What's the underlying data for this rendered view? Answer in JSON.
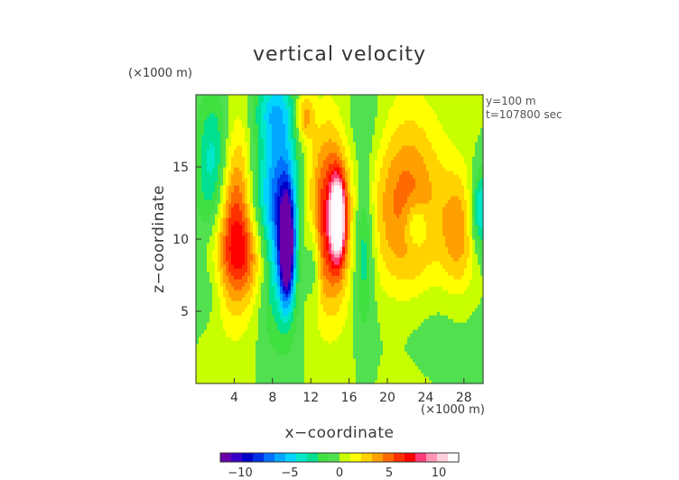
{
  "chart_data": {
    "type": "heatmap",
    "title": "vertical velocity",
    "xlabel": "x−coordinate",
    "ylabel": "z−coordinate",
    "x_multiplier_label": "(×1000 m)",
    "y_multiplier_label": "(×1000 m)",
    "annotations": [
      "y=100 m",
      "t=107800 sec"
    ],
    "xlim": [
      0,
      30
    ],
    "ylim": [
      0,
      20
    ],
    "x_ticks": [
      4,
      8,
      12,
      16,
      20,
      24,
      28
    ],
    "x_tick_labels": [
      "4",
      "8",
      "12",
      "16",
      "20",
      "24",
      "28"
    ],
    "y_ticks": [
      5,
      10,
      15
    ],
    "y_tick_labels": [
      "5",
      "10",
      "15"
    ],
    "colorbar": {
      "range": [
        -12,
        12
      ],
      "ticks": [
        -10,
        -5,
        0,
        5,
        10
      ],
      "tick_labels": [
        "−10",
        "−5",
        "0",
        "5",
        "10"
      ],
      "placement": "bottom"
    },
    "background_value": 0,
    "features": [
      {
        "x": 2.0,
        "z": 15.0,
        "sx": 1.3,
        "sz": 3.5,
        "value": -5
      },
      {
        "x": 4.0,
        "z": 11.5,
        "sx": 1.5,
        "sz": 4.5,
        "value": 6.5
      },
      {
        "x": 5.5,
        "z": 8.8,
        "sx": 2.0,
        "sz": 2.0,
        "value": 3
      },
      {
        "x": 6.2,
        "z": 13.5,
        "sx": 1.0,
        "sz": 3.0,
        "value": -2
      },
      {
        "x": 8.8,
        "z": 12.0,
        "sx": 1.4,
        "sz": 5.0,
        "value": -8
      },
      {
        "x": 9.5,
        "z": 9.5,
        "sx": 0.5,
        "sz": 2.4,
        "value": -13
      },
      {
        "x": 8.0,
        "z": 19.0,
        "sx": 1.5,
        "sz": 1.5,
        "value": -3
      },
      {
        "x": 11.3,
        "z": 18.5,
        "sx": 0.7,
        "sz": 1.2,
        "value": 4
      },
      {
        "x": 14.0,
        "z": 11.5,
        "sx": 1.6,
        "sz": 4.5,
        "value": 7
      },
      {
        "x": 14.8,
        "z": 11.5,
        "sx": 0.5,
        "sz": 1.8,
        "value": 13
      },
      {
        "x": 17.5,
        "z": 9.5,
        "sx": 0.8,
        "sz": 3.5,
        "value": -4
      },
      {
        "x": 12.3,
        "z": 8.5,
        "sx": 0.5,
        "sz": 2.0,
        "value": -3
      },
      {
        "x": 22.0,
        "z": 12.5,
        "sx": 2.8,
        "sz": 4.5,
        "value": 5
      },
      {
        "x": 23.0,
        "z": 11.0,
        "sx": 0.9,
        "sz": 1.2,
        "value": -3
      },
      {
        "x": 27.5,
        "z": 10.5,
        "sx": 1.3,
        "sz": 3.0,
        "value": 3.5
      },
      {
        "x": 29.8,
        "z": 12.0,
        "sx": 0.8,
        "sz": 2.0,
        "value": -5
      },
      {
        "x": 17.5,
        "z": 17.5,
        "sx": 1.8,
        "sz": 2.5,
        "value": -1.5
      },
      {
        "x": 24.0,
        "z": 4.5,
        "sx": 4.0,
        "sz": 2.0,
        "value": -0.8
      },
      {
        "x": 1.5,
        "z": 6.5,
        "sx": 1.5,
        "sz": 1.5,
        "value": -1
      }
    ]
  }
}
